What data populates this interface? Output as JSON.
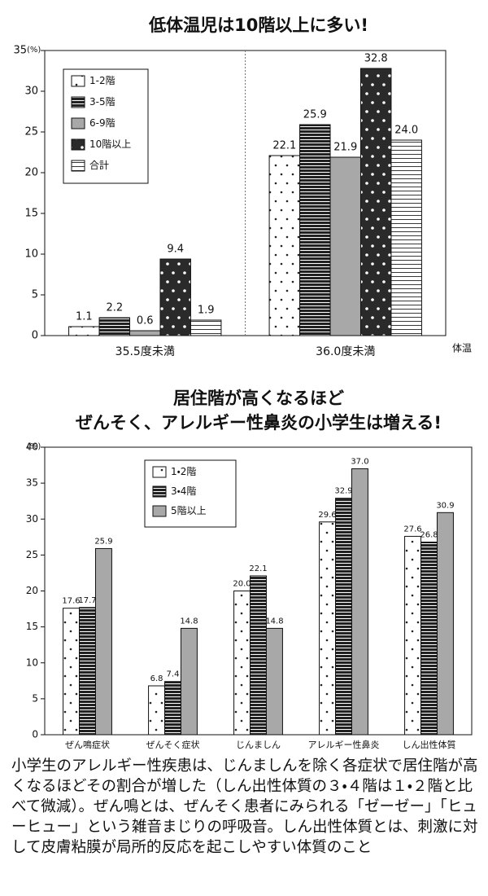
{
  "chart_data": [
    {
      "type": "bar",
      "title": [
        "低体温児は10階以上に多い!"
      ],
      "y_unit": "(%)",
      "x_label": "体温",
      "categories": [
        "35.5度未満",
        "36.0度未満"
      ],
      "series": [
        {
          "name": "1-2階",
          "pattern": "dots",
          "color": "#222222",
          "values": [
            1.1,
            22.1
          ]
        },
        {
          "name": "3-5階",
          "pattern": "stripes",
          "color": "#222222",
          "values": [
            2.2,
            25.9
          ]
        },
        {
          "name": "6-9階",
          "pattern": "solid",
          "color": "#a8a8a8",
          "values": [
            0.6,
            21.9
          ]
        },
        {
          "name": "10階以上",
          "pattern": "dark-dots",
          "color": "#2a2a2a",
          "values": [
            9.4,
            32.8
          ]
        },
        {
          "name": "合計",
          "pattern": "lines",
          "color": "#222222",
          "values": [
            1.9,
            24.0
          ],
          "value_labels": [
            "1.9",
            "24.0"
          ]
        }
      ],
      "ylim": [
        0,
        35
      ],
      "yticks": [
        0,
        5,
        10,
        15,
        20,
        25,
        30,
        35
      ],
      "legend": "upper left",
      "divider": true
    },
    {
      "type": "bar",
      "title": [
        "居住階が高くなるほど",
        "ぜんそく、アレルギー性鼻炎の小学生は増える!"
      ],
      "y_unit": "(%)",
      "categories": [
        "ぜん鳴症状",
        "ぜんそく症状",
        "じんましん",
        "アレルギー性鼻炎",
        "しん出性体質"
      ],
      "series": [
        {
          "name": "1・2階",
          "pattern": "dots",
          "color": "#222222",
          "values": [
            17.6,
            6.8,
            20.0,
            29.6,
            27.6
          ],
          "value_labels": [
            "17.6",
            "6.8",
            "20.0",
            "29.6",
            "27.6"
          ]
        },
        {
          "name": "3・4階",
          "pattern": "stripes",
          "color": "#222222",
          "values": [
            17.7,
            7.4,
            22.1,
            32.9,
            26.8
          ]
        },
        {
          "name": "5階以上",
          "pattern": "solid",
          "color": "#a8a8a8",
          "values": [
            25.9,
            14.8,
            14.8,
            37.0,
            30.9
          ],
          "value_labels": [
            "25.9",
            "14.8",
            "14.8",
            "37.0",
            "30.9"
          ]
        }
      ],
      "ylim": [
        0,
        40
      ],
      "yticks": [
        0,
        5,
        10,
        15,
        20,
        25,
        30,
        35,
        40
      ],
      "legend": "upper left",
      "divider": false
    }
  ],
  "caption": "小学生のアレルギー性疾患は、じんましんを除く各症状で居住階が高くなるほどその割合が増した（しん出性体質の３・４階は１・２階と比べて微減）。ぜん鳴とは、ぜんそく患者にみられる「ゼーゼー」「ヒューヒュー」という雑音まじりの呼吸音。しん出性体質とは、刺激に対して皮膚粘膜が局所的反応を起こしやすい体質のこと"
}
